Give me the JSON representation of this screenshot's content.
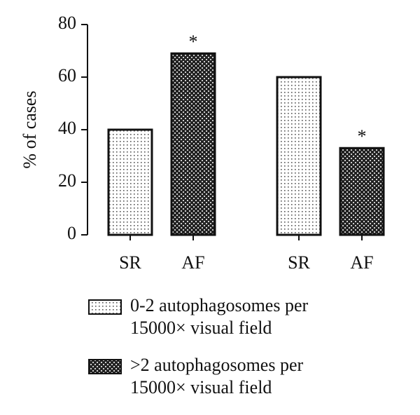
{
  "chart_data": {
    "type": "bar",
    "ylabel": "% of cases",
    "categories": [
      "SR",
      "AF",
      "SR",
      "AF"
    ],
    "series": [
      {
        "name": "0-2 autophagosomes per 15000× visual field",
        "color": "#ffffff",
        "values": [
          40,
          null,
          60,
          null
        ]
      },
      {
        "name": ">2 autophagosomes per 15000× visual field",
        "color": "#222222",
        "values": [
          null,
          69,
          null,
          33
        ],
        "annotations": [
          null,
          "*",
          null,
          "*"
        ]
      }
    ],
    "ylim": [
      0,
      80
    ],
    "yticks": [
      0,
      20,
      40,
      60,
      80
    ]
  }
}
